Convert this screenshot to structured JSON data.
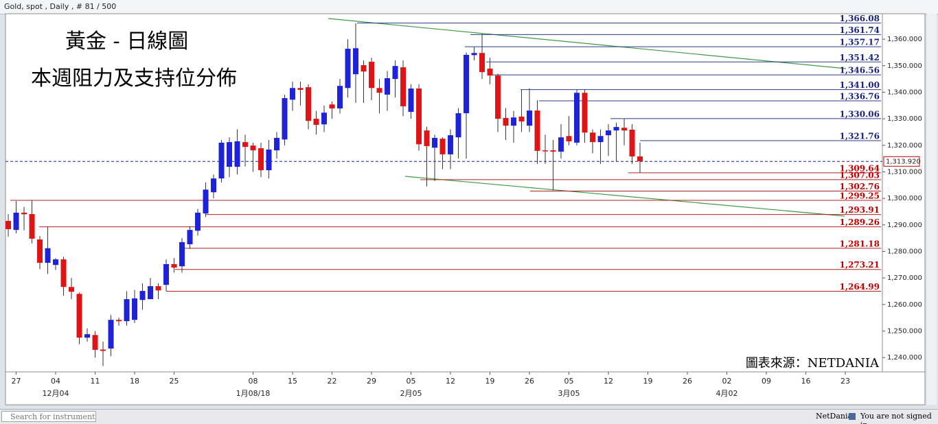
{
  "ui": {
    "header": "Gold, spot , Daily , # 81 / 500",
    "search_placeholder": "Search for instrument",
    "brand": "NetDania",
    "status": "You are not signed in."
  },
  "chart_data": {
    "type": "candlestick",
    "title": "黃金 - 日線圖",
    "subtitle": "本週阻力及支持位分佈",
    "source": "圖表來源：NETDANIA",
    "up_color": "#1e22d8",
    "down_color": "#e01414",
    "resistance_color": "#2c3a8a",
    "support_color": "#b02020",
    "categories": [
      null,
      "27",
      null,
      null,
      null,
      null,
      "04",
      null,
      null,
      null,
      null,
      "11",
      null,
      null,
      null,
      null,
      "18",
      null,
      null,
      null,
      null,
      "25",
      null,
      null,
      null,
      null,
      null,
      null,
      null,
      null,
      null,
      "08",
      null,
      null,
      null,
      null,
      "15",
      null,
      null,
      null,
      null,
      "22",
      null,
      null,
      null,
      null,
      "29",
      null,
      null,
      null,
      null,
      "05",
      null,
      null,
      null,
      null,
      "12",
      null,
      null,
      null,
      null,
      "19",
      null,
      null,
      null,
      null,
      "26",
      null,
      null,
      null,
      null,
      "05",
      null,
      null,
      null,
      null,
      "12",
      null,
      null,
      null,
      null,
      "19",
      null,
      null,
      null,
      null,
      "26",
      null,
      null,
      null,
      null,
      "02",
      null,
      null,
      null,
      null,
      "09",
      null,
      null,
      null,
      null,
      "16",
      null,
      null,
      null,
      null,
      "23",
      null,
      null,
      null,
      null
    ],
    "month_categories": [
      null,
      null,
      null,
      null,
      null,
      null,
      "12月04",
      null,
      null,
      null,
      null,
      null,
      null,
      null,
      null,
      null,
      null,
      null,
      null,
      null,
      null,
      null,
      null,
      null,
      null,
      null,
      null,
      null,
      null,
      null,
      null,
      "1月08/18",
      null,
      null,
      null,
      null,
      null,
      null,
      null,
      null,
      null,
      null,
      null,
      null,
      null,
      null,
      null,
      null,
      null,
      null,
      null,
      "2月05",
      null,
      null,
      null,
      null,
      null,
      null,
      null,
      null,
      null,
      null,
      null,
      null,
      null,
      null,
      null,
      null,
      null,
      null,
      null,
      "3月05",
      null,
      null,
      null,
      null,
      null,
      null,
      null,
      null,
      null,
      null,
      null,
      null,
      null,
      null,
      null,
      null,
      null,
      null,
      null,
      "4月02",
      null,
      null,
      null,
      null,
      null,
      null,
      null,
      null,
      null,
      null,
      null,
      null,
      null,
      null,
      null,
      null,
      null,
      null,
      null
    ],
    "open": [
      1291.5,
      1288.1,
      1294.6,
      1294.1,
      1284.5,
      1275.7,
      1274.9,
      1277,
      1266.6,
      1264,
      1247.5,
      1248.5,
      1243,
      1243.4,
      1254.2,
      1253.7,
      1254.2,
      1261.7,
      1262,
      1266.9,
      1267.4,
      1275.2,
      1274.4,
      1282.7,
      1287.8,
      1294.3,
      1302.3,
      1307.5,
      1311.9,
      1311.9,
      1321.2,
      1319.9,
      1318.9,
      1310.6,
      1318.1,
      1322.2,
      1337.2,
      1341.6,
      1341.9,
      1330,
      1327.9,
      1335.4,
      1333.9,
      1341.6,
      1346.8,
      1350.2,
      1351.5,
      1341.6,
      1339.1,
      1345,
      1349.4,
      1332.6,
      1341.4,
      1325.6,
      1319.1,
      1322.5,
      1316.6,
      1323,
      1332.1,
      1354,
      1354.8,
      1348.9,
      1346.3,
      1330.3,
      1327.4,
      1330.8,
      1327.4,
      1333.1,
      1318.1,
      1318.1,
      1317.6,
      1323.5,
      1321,
      1339.8,
      1324.8,
      1321.2,
      1323.8,
      1325.6,
      1326.6,
      1325.9,
      1315.8,
      null,
      null,
      null,
      null,
      null,
      null,
      null,
      null,
      null,
      null,
      null,
      null,
      null,
      null,
      null,
      null,
      null,
      null,
      null,
      null,
      null,
      null,
      null,
      null,
      null,
      null,
      null,
      null,
      null,
      null
    ],
    "high": [
      1294.1,
      1299,
      1296.8,
      1299.3,
      1285.8,
      1289.3,
      1277.5,
      1278,
      1270,
      1264.5,
      1251,
      1250,
      1246,
      1256,
      1255,
      1265,
      1265.5,
      1268,
      1270,
      1268,
      1277,
      1277.5,
      1285,
      1289.5,
      1296,
      1306,
      1309,
      1322,
      1323,
      1326,
      1324,
      1321,
      1321,
      1322,
      1325,
      1339,
      1344,
      1344,
      1343,
      1333,
      1335,
      1336.5,
      1345,
      1360,
      1366,
      1352,
      1353,
      1345,
      1348,
      1352,
      1352,
      1343,
      1343,
      1327,
      1324,
      1323,
      1326,
      1334,
      1355,
      1357,
      1362,
      1353,
      1347,
      1334,
      1333,
      1341,
      1341.5,
      1337,
      1324,
      1322,
      1328,
      1331,
      1341,
      1341,
      1326,
      1326,
      1328,
      1328.5,
      1330,
      1328,
      1321,
      null,
      null,
      null,
      null,
      null,
      null,
      null,
      null,
      null,
      null,
      null,
      null,
      null,
      null,
      null,
      null,
      null,
      null,
      null,
      null,
      null,
      null,
      null,
      null,
      null,
      null,
      null,
      null,
      null,
      null
    ],
    "low": [
      1285.5,
      1286.8,
      1288,
      1283,
      1273.3,
      1271.5,
      1273,
      1263.3,
      1262,
      1245,
      1246,
      1240,
      1236.8,
      1240.5,
      1252,
      1252,
      1253,
      1258,
      1263,
      1262,
      1265,
      1272,
      1272,
      1281,
      1286,
      1293,
      1300,
      1306,
      1308,
      1309,
      1312,
      1310,
      1308,
      1307.5,
      1315,
      1320,
      1333,
      1335,
      1326,
      1324,
      1325,
      1330,
      1332,
      1338,
      1336,
      1336,
      1337,
      1332,
      1333,
      1338,
      1331,
      1330,
      1318,
      1304.5,
      1306.5,
      1311,
      1311,
      1315,
      1315,
      1352,
      1345,
      1343,
      1325,
      1322,
      1321,
      1325,
      1325,
      1313,
      1313,
      1303,
      1315,
      1320,
      1320,
      1321,
      1317,
      1313,
      1316,
      1314,
      1320,
      1313,
      1309.6,
      null,
      null,
      null,
      null,
      null,
      null,
      null,
      null,
      null,
      null,
      null,
      null,
      null,
      null,
      null,
      null,
      null,
      null,
      null,
      null,
      null,
      null,
      null,
      null,
      null,
      null,
      null,
      null,
      null,
      null
    ],
    "close": [
      1288.4,
      1294.6,
      1294.0,
      1284.8,
      1275.7,
      1281.2,
      1277,
      1266.6,
      1264.8,
      1247.5,
      1248.8,
      1242.9,
      1242.5,
      1254.2,
      1253.7,
      1262,
      1262.3,
      1265.1,
      1266.9,
      1265.3,
      1275.2,
      1273.9,
      1283.5,
      1288.1,
      1294.6,
      1303.3,
      1307.5,
      1321,
      1321.2,
      1321.5,
      1319.4,
      1318.1,
      1310.6,
      1318.4,
      1322.8,
      1337.8,
      1341.6,
      1340.9,
      1329.2,
      1327.7,
      1332.3,
      1333.9,
      1342.4,
      1356.4,
      1356.6,
      1347.8,
      1341.6,
      1339.8,
      1345.3,
      1349.9,
      1334.7,
      1341.4,
      1320.4,
      1319.7,
      1322.8,
      1316.6,
      1323.8,
      1332.1,
      1354.1,
      1354.8,
      1347.6,
      1346.3,
      1330,
      1327.4,
      1330.5,
      1329,
      1333.1,
      1317.9,
      1317.9,
      1317.6,
      1323,
      1321.5,
      1339.8,
      1324.8,
      1321.2,
      1323.5,
      1325.6,
      1326.9,
      1325.6,
      1315.8,
      1314,
      null,
      null,
      null,
      null,
      null,
      null,
      null,
      null,
      null,
      null,
      null,
      null,
      null,
      null,
      null,
      null,
      null,
      null,
      null,
      null,
      null,
      null,
      null,
      null,
      null,
      null,
      null,
      null,
      null,
      null
    ],
    "ylim": [
      1234.6,
      1369.6
    ],
    "yticks": [
      {
        "value": 1240,
        "label": "1,240.000"
      },
      {
        "value": 1250,
        "label": "1,250.000"
      },
      {
        "value": 1260,
        "label": "1,260.000"
      },
      {
        "value": 1270,
        "label": "1,270.000"
      },
      {
        "value": 1280,
        "label": "1,280.000"
      },
      {
        "value": 1290,
        "label": "1,290.000"
      },
      {
        "value": 1300,
        "label": "1,300.000"
      },
      {
        "value": 1310,
        "label": "1,310.000"
      },
      {
        "value": 1320,
        "label": "1,320.000"
      },
      {
        "value": 1330,
        "label": "1,330.000"
      },
      {
        "value": 1340,
        "label": "1,340.000"
      },
      {
        "value": 1350,
        "label": "1,350.000"
      },
      {
        "value": 1360,
        "label": "1,360.000"
      }
    ],
    "current_price": {
      "value": 1313.92,
      "label": "1,313.920"
    },
    "resistance": [
      {
        "value": 1366.08,
        "label": "1,366.08"
      },
      {
        "value": 1361.74,
        "label": "1,361.74"
      },
      {
        "value": 1357.17,
        "label": "1,357.17"
      },
      {
        "value": 1351.42,
        "label": "1,351.42"
      },
      {
        "value": 1346.56,
        "label": "1,346.56"
      },
      {
        "value": 1341.0,
        "label": "1,341.00"
      },
      {
        "value": 1336.76,
        "label": "1,336.76"
      },
      {
        "value": 1330.06,
        "label": "1,330.06"
      },
      {
        "value": 1321.76,
        "label": "1,321.76"
      }
    ],
    "support": [
      {
        "value": 1309.64,
        "label": "1,309.64"
      },
      {
        "value": 1307.03,
        "label": "1,307.03"
      },
      {
        "value": 1302.76,
        "label": "1,302.76"
      },
      {
        "value": 1299.25,
        "label": "1,299.25"
      },
      {
        "value": 1293.91,
        "label": "1,293.91"
      },
      {
        "value": 1289.26,
        "label": "1,289.26"
      },
      {
        "value": 1281.18,
        "label": "1,281.18"
      },
      {
        "value": 1273.21,
        "label": "1,273.21"
      },
      {
        "value": 1264.99,
        "label": "1,264.99"
      }
    ]
  }
}
